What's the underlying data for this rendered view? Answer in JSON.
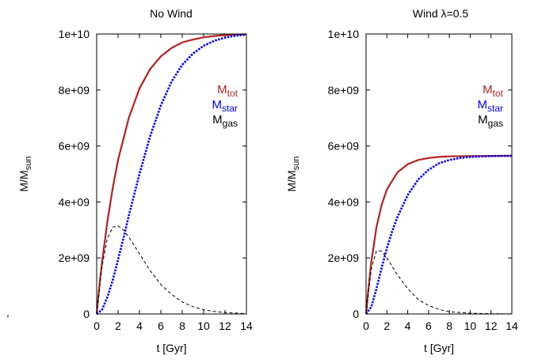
{
  "stray_mark": ",",
  "chart_data": [
    {
      "type": "line",
      "title": "No Wind",
      "xlabel": "t [Gyr]",
      "ylabel": "M/M",
      "ylabel_sub": "sun",
      "xlim": [
        0,
        14
      ],
      "ylim": [
        0,
        10000000000
      ],
      "xticks": [
        0,
        2,
        4,
        6,
        8,
        10,
        12,
        14
      ],
      "xtick_labels": [
        "0",
        "2",
        "4",
        "6",
        "8",
        "10",
        "12",
        "14"
      ],
      "yticks": [
        0,
        2000000000,
        4000000000,
        6000000000,
        8000000000,
        10000000000
      ],
      "ytick_labels": [
        "0",
        "2e+09",
        "4e+09",
        "6e+09",
        "8e+09",
        "1e+10"
      ],
      "legend_position": "right",
      "series": [
        {
          "name": "M",
          "sub": "tot",
          "color": "#b22222",
          "dash": "solid",
          "x": [
            0,
            0.25,
            0.5,
            1,
            1.5,
            2,
            3,
            4,
            5,
            6,
            7,
            8,
            9,
            10,
            11,
            12,
            13,
            14
          ],
          "y": [
            0,
            1000000000,
            1850000000,
            3300000000,
            4500000000,
            5500000000,
            7000000000,
            8050000000,
            8750000000,
            9200000000,
            9500000000,
            9700000000,
            9800000000,
            9880000000,
            9930000000,
            9960000000,
            9980000000,
            9990000000
          ]
        },
        {
          "name": "M",
          "sub": "star",
          "color": "#0000ee",
          "dash": "dotted",
          "x": [
            0,
            0.5,
            1,
            1.5,
            2,
            2.5,
            3,
            4,
            5,
            6,
            7,
            8,
            9,
            10,
            11,
            12,
            13,
            14
          ],
          "y": [
            0,
            150000000,
            600000000,
            1200000000,
            1950000000,
            2700000000,
            3500000000,
            5000000000,
            6350000000,
            7450000000,
            8300000000,
            8900000000,
            9300000000,
            9580000000,
            9760000000,
            9870000000,
            9940000000,
            9980000000
          ]
        },
        {
          "name": "M",
          "sub": "gas",
          "color": "#000000",
          "dash": "dashed",
          "x": [
            0,
            0.5,
            1,
            1.5,
            2,
            2.5,
            3,
            4,
            5,
            6,
            7,
            8,
            9,
            10,
            11,
            12,
            13,
            14
          ],
          "y": [
            0,
            1700000000,
            2700000000,
            3100000000,
            3150000000,
            3000000000,
            2750000000,
            2150000000,
            1550000000,
            1050000000,
            700000000,
            430000000,
            260000000,
            150000000,
            90000000,
            50000000,
            30000000,
            10000000
          ]
        }
      ]
    },
    {
      "type": "line",
      "title": "Wind λ=0.5",
      "xlabel": "t [Gyr]",
      "ylabel": "M/M",
      "ylabel_sub": "sun",
      "xlim": [
        0,
        14
      ],
      "ylim": [
        0,
        10000000000
      ],
      "xticks": [
        0,
        2,
        4,
        6,
        8,
        10,
        12,
        14
      ],
      "xtick_labels": [
        "0",
        "2",
        "4",
        "6",
        "8",
        "10",
        "12",
        "14"
      ],
      "yticks": [
        0,
        2000000000,
        4000000000,
        6000000000,
        8000000000,
        10000000000
      ],
      "ytick_labels": [
        "0",
        "2e+09",
        "4e+09",
        "6e+09",
        "8e+09",
        "1e+10"
      ],
      "legend_position": "right",
      "series": [
        {
          "name": "M",
          "sub": "tot",
          "color": "#b22222",
          "dash": "solid",
          "x": [
            0,
            0.25,
            0.5,
            1,
            1.5,
            2,
            3,
            4,
            5,
            6,
            7,
            8,
            10,
            12,
            14
          ],
          "y": [
            0,
            1000000000,
            1850000000,
            3100000000,
            3900000000,
            4450000000,
            5050000000,
            5350000000,
            5500000000,
            5570000000,
            5610000000,
            5630000000,
            5640000000,
            5645000000,
            5650000000
          ]
        },
        {
          "name": "M",
          "sub": "star",
          "color": "#0000ee",
          "dash": "dotted",
          "x": [
            0,
            0.5,
            1,
            1.5,
            2,
            2.5,
            3,
            4,
            5,
            6,
            7,
            8,
            9,
            10,
            12,
            14
          ],
          "y": [
            0,
            250000000,
            900000000,
            1650000000,
            2350000000,
            2950000000,
            3450000000,
            4250000000,
            4800000000,
            5150000000,
            5380000000,
            5500000000,
            5570000000,
            5610000000,
            5640000000,
            5650000000
          ]
        },
        {
          "name": "M",
          "sub": "gas",
          "color": "#000000",
          "dash": "dashed",
          "x": [
            0,
            0.5,
            1,
            1.5,
            2,
            2.5,
            3,
            4,
            5,
            6,
            7,
            8,
            10,
            12,
            14
          ],
          "y": [
            0,
            1600000000,
            2250000000,
            2250000000,
            2000000000,
            1700000000,
            1400000000,
            900000000,
            520000000,
            300000000,
            160000000,
            80000000,
            25000000,
            8000000,
            2000000
          ]
        }
      ]
    }
  ]
}
